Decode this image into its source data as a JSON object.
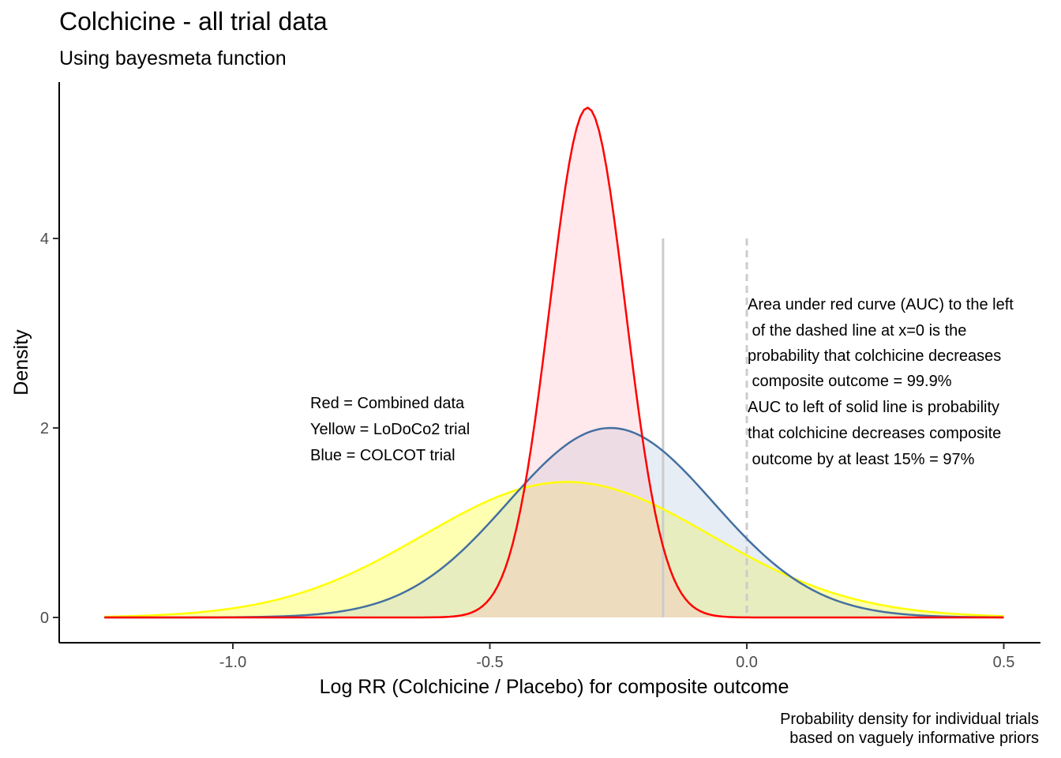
{
  "chart_data": {
    "type": "area",
    "title": "Colchicine - all trial data",
    "subtitle": "Using bayesmeta function",
    "xlabel": "Log RR (Colchicine / Placebo) for composite outcome",
    "ylabel": "Density",
    "xlim": [
      -1.25,
      0.5
    ],
    "ylim": [
      0,
      5.4
    ],
    "x_ticks": [
      -1.0,
      -0.5,
      0.0,
      0.5
    ],
    "x_tick_labels": [
      "-1.0",
      "-0.5",
      "0.0",
      "0.5"
    ],
    "y_ticks": [
      0,
      2,
      4
    ],
    "y_tick_labels": [
      "0",
      "2",
      "4"
    ],
    "grid": false,
    "series": [
      {
        "name": "Yellow = LoDoCo2 trial",
        "distribution": "normal",
        "mean": -0.35,
        "sd": 0.28,
        "peak_density": 1.43,
        "line_color": "#FFFF00",
        "fill_color": "#FFFF00"
      },
      {
        "name": "Blue = COLCOT trial",
        "distribution": "normal",
        "mean": -0.265,
        "sd": 0.2,
        "peak_density": 2.0,
        "line_color": "#4470A0",
        "fill_color": "#B0C4DE"
      },
      {
        "name": "Red = Combined data",
        "distribution": "normal",
        "mean": -0.31,
        "sd": 0.074,
        "peak_density": 5.38,
        "line_color": "#FF0000",
        "fill_color": "#FFB6C1"
      }
    ],
    "reference_lines": [
      {
        "label": "solid line",
        "x": -0.163,
        "y_top": 4.0,
        "style": "solid",
        "color": "#CCCCCC"
      },
      {
        "label": "dashed line at x=0",
        "x": 0.0,
        "y_top": 4.0,
        "style": "dashed",
        "color": "#CCCCCC"
      }
    ],
    "annotations": {
      "legend_text": [
        "Red = Combined data",
        "Yellow = LoDoCo2 trial",
        "Blue = COLCOT trial"
      ],
      "auc_text": [
        "Area under red curve (AUC) to the left",
        " of the dashed line at x=0 is the",
        "probability that colchicine decreases",
        " composite outcome = 99.9%",
        "AUC to left of solid line is probability",
        "that colchicine decreases composite",
        " outcome by at least 15% = 97%"
      ]
    },
    "caption": [
      "Probability density for individual trials",
      "based on vaguely informative priors"
    ]
  }
}
